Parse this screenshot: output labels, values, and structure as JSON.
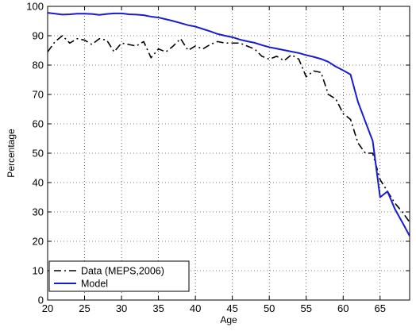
{
  "chart_data": {
    "type": "line",
    "title": "",
    "xlabel": "Age",
    "ylabel": "Percentage",
    "xlim": [
      20,
      69
    ],
    "ylim": [
      0,
      100
    ],
    "xticks": [
      20,
      25,
      30,
      35,
      40,
      45,
      50,
      55,
      60,
      65
    ],
    "yticks": [
      0,
      10,
      20,
      30,
      40,
      50,
      60,
      70,
      80,
      90,
      100
    ],
    "grid": true,
    "legend_position": "bottom-left",
    "series": [
      {
        "name": "Data (MEPS,2006)",
        "color": "#000000",
        "style": "dash-dot",
        "x": [
          20,
          21,
          22,
          23,
          24,
          25,
          26,
          27,
          28,
          29,
          30,
          31,
          32,
          33,
          34,
          35,
          36,
          37,
          38,
          39,
          40,
          41,
          42,
          43,
          44,
          45,
          46,
          47,
          48,
          49,
          50,
          51,
          52,
          53,
          54,
          55,
          56,
          57,
          58,
          59,
          60,
          61,
          62,
          63,
          64,
          65,
          66,
          67,
          68,
          69
        ],
        "y": [
          84.5,
          88,
          90,
          87.5,
          89,
          88.5,
          87,
          89,
          88.5,
          84.5,
          87.5,
          87,
          86.5,
          88,
          82.5,
          85.5,
          84.5,
          86.5,
          89,
          85,
          86.5,
          85.5,
          87,
          88,
          87.5,
          87.5,
          87.5,
          86.5,
          85.5,
          83,
          82,
          83,
          81.5,
          83.5,
          82,
          76,
          78,
          77.5,
          70,
          68.5,
          63.5,
          61.5,
          53.5,
          50,
          50,
          41,
          37,
          33,
          30,
          26.5
        ]
      },
      {
        "name": "Model",
        "color": "#1a1ad0",
        "style": "solid",
        "x": [
          20,
          21,
          22,
          23,
          24,
          25,
          26,
          27,
          28,
          29,
          30,
          31,
          32,
          33,
          34,
          35,
          36,
          37,
          38,
          39,
          40,
          41,
          42,
          43,
          44,
          45,
          46,
          47,
          48,
          49,
          50,
          51,
          52,
          53,
          54,
          55,
          56,
          57,
          58,
          59,
          60,
          61,
          62,
          63,
          64,
          65,
          66,
          67,
          68,
          69
        ],
        "y": [
          97.8,
          97.5,
          97.2,
          97.3,
          97.5,
          97.5,
          97.4,
          97.1,
          97.4,
          97.6,
          97.6,
          97.3,
          97.2,
          97,
          96.5,
          96.2,
          95.6,
          95,
          94.3,
          93.6,
          93.1,
          92.3,
          91.5,
          90.6,
          90,
          89.5,
          88.7,
          88.1,
          87.6,
          86.8,
          86.1,
          85.6,
          85.1,
          84.6,
          84.1,
          83.4,
          82.8,
          82.1,
          81.1,
          79.5,
          78.2,
          76.8,
          67.5,
          60.8,
          54.2,
          35,
          37,
          31,
          26.5,
          21.8
        ]
      }
    ]
  }
}
